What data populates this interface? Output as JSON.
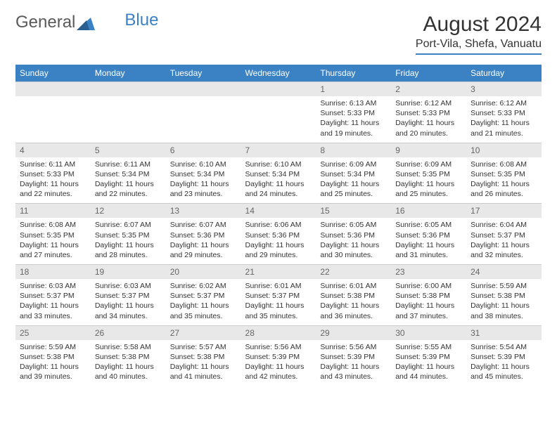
{
  "brand": {
    "part1": "General",
    "part2": "Blue"
  },
  "title": "August 2024",
  "location": "Port-Vila, Shefa, Vanuatu",
  "colors": {
    "header_bg": "#3b82c4",
    "header_text": "#ffffff",
    "daynum_bg": "#e8e8e8",
    "daynum_text": "#666666",
    "body_text": "#333333",
    "border": "#cccccc"
  },
  "day_headers": [
    "Sunday",
    "Monday",
    "Tuesday",
    "Wednesday",
    "Thursday",
    "Friday",
    "Saturday"
  ],
  "weeks": [
    {
      "nums": [
        "",
        "",
        "",
        "",
        "1",
        "2",
        "3"
      ],
      "cells": [
        null,
        null,
        null,
        null,
        {
          "sunrise": "Sunrise: 6:13 AM",
          "sunset": "Sunset: 5:33 PM",
          "day1": "Daylight: 11 hours",
          "day2": "and 19 minutes."
        },
        {
          "sunrise": "Sunrise: 6:12 AM",
          "sunset": "Sunset: 5:33 PM",
          "day1": "Daylight: 11 hours",
          "day2": "and 20 minutes."
        },
        {
          "sunrise": "Sunrise: 6:12 AM",
          "sunset": "Sunset: 5:33 PM",
          "day1": "Daylight: 11 hours",
          "day2": "and 21 minutes."
        }
      ]
    },
    {
      "nums": [
        "4",
        "5",
        "6",
        "7",
        "8",
        "9",
        "10"
      ],
      "cells": [
        {
          "sunrise": "Sunrise: 6:11 AM",
          "sunset": "Sunset: 5:33 PM",
          "day1": "Daylight: 11 hours",
          "day2": "and 22 minutes."
        },
        {
          "sunrise": "Sunrise: 6:11 AM",
          "sunset": "Sunset: 5:34 PM",
          "day1": "Daylight: 11 hours",
          "day2": "and 22 minutes."
        },
        {
          "sunrise": "Sunrise: 6:10 AM",
          "sunset": "Sunset: 5:34 PM",
          "day1": "Daylight: 11 hours",
          "day2": "and 23 minutes."
        },
        {
          "sunrise": "Sunrise: 6:10 AM",
          "sunset": "Sunset: 5:34 PM",
          "day1": "Daylight: 11 hours",
          "day2": "and 24 minutes."
        },
        {
          "sunrise": "Sunrise: 6:09 AM",
          "sunset": "Sunset: 5:34 PM",
          "day1": "Daylight: 11 hours",
          "day2": "and 25 minutes."
        },
        {
          "sunrise": "Sunrise: 6:09 AM",
          "sunset": "Sunset: 5:35 PM",
          "day1": "Daylight: 11 hours",
          "day2": "and 25 minutes."
        },
        {
          "sunrise": "Sunrise: 6:08 AM",
          "sunset": "Sunset: 5:35 PM",
          "day1": "Daylight: 11 hours",
          "day2": "and 26 minutes."
        }
      ]
    },
    {
      "nums": [
        "11",
        "12",
        "13",
        "14",
        "15",
        "16",
        "17"
      ],
      "cells": [
        {
          "sunrise": "Sunrise: 6:08 AM",
          "sunset": "Sunset: 5:35 PM",
          "day1": "Daylight: 11 hours",
          "day2": "and 27 minutes."
        },
        {
          "sunrise": "Sunrise: 6:07 AM",
          "sunset": "Sunset: 5:35 PM",
          "day1": "Daylight: 11 hours",
          "day2": "and 28 minutes."
        },
        {
          "sunrise": "Sunrise: 6:07 AM",
          "sunset": "Sunset: 5:36 PM",
          "day1": "Daylight: 11 hours",
          "day2": "and 29 minutes."
        },
        {
          "sunrise": "Sunrise: 6:06 AM",
          "sunset": "Sunset: 5:36 PM",
          "day1": "Daylight: 11 hours",
          "day2": "and 29 minutes."
        },
        {
          "sunrise": "Sunrise: 6:05 AM",
          "sunset": "Sunset: 5:36 PM",
          "day1": "Daylight: 11 hours",
          "day2": "and 30 minutes."
        },
        {
          "sunrise": "Sunrise: 6:05 AM",
          "sunset": "Sunset: 5:36 PM",
          "day1": "Daylight: 11 hours",
          "day2": "and 31 minutes."
        },
        {
          "sunrise": "Sunrise: 6:04 AM",
          "sunset": "Sunset: 5:37 PM",
          "day1": "Daylight: 11 hours",
          "day2": "and 32 minutes."
        }
      ]
    },
    {
      "nums": [
        "18",
        "19",
        "20",
        "21",
        "22",
        "23",
        "24"
      ],
      "cells": [
        {
          "sunrise": "Sunrise: 6:03 AM",
          "sunset": "Sunset: 5:37 PM",
          "day1": "Daylight: 11 hours",
          "day2": "and 33 minutes."
        },
        {
          "sunrise": "Sunrise: 6:03 AM",
          "sunset": "Sunset: 5:37 PM",
          "day1": "Daylight: 11 hours",
          "day2": "and 34 minutes."
        },
        {
          "sunrise": "Sunrise: 6:02 AM",
          "sunset": "Sunset: 5:37 PM",
          "day1": "Daylight: 11 hours",
          "day2": "and 35 minutes."
        },
        {
          "sunrise": "Sunrise: 6:01 AM",
          "sunset": "Sunset: 5:37 PM",
          "day1": "Daylight: 11 hours",
          "day2": "and 35 minutes."
        },
        {
          "sunrise": "Sunrise: 6:01 AM",
          "sunset": "Sunset: 5:38 PM",
          "day1": "Daylight: 11 hours",
          "day2": "and 36 minutes."
        },
        {
          "sunrise": "Sunrise: 6:00 AM",
          "sunset": "Sunset: 5:38 PM",
          "day1": "Daylight: 11 hours",
          "day2": "and 37 minutes."
        },
        {
          "sunrise": "Sunrise: 5:59 AM",
          "sunset": "Sunset: 5:38 PM",
          "day1": "Daylight: 11 hours",
          "day2": "and 38 minutes."
        }
      ]
    },
    {
      "nums": [
        "25",
        "26",
        "27",
        "28",
        "29",
        "30",
        "31"
      ],
      "cells": [
        {
          "sunrise": "Sunrise: 5:59 AM",
          "sunset": "Sunset: 5:38 PM",
          "day1": "Daylight: 11 hours",
          "day2": "and 39 minutes."
        },
        {
          "sunrise": "Sunrise: 5:58 AM",
          "sunset": "Sunset: 5:38 PM",
          "day1": "Daylight: 11 hours",
          "day2": "and 40 minutes."
        },
        {
          "sunrise": "Sunrise: 5:57 AM",
          "sunset": "Sunset: 5:38 PM",
          "day1": "Daylight: 11 hours",
          "day2": "and 41 minutes."
        },
        {
          "sunrise": "Sunrise: 5:56 AM",
          "sunset": "Sunset: 5:39 PM",
          "day1": "Daylight: 11 hours",
          "day2": "and 42 minutes."
        },
        {
          "sunrise": "Sunrise: 5:56 AM",
          "sunset": "Sunset: 5:39 PM",
          "day1": "Daylight: 11 hours",
          "day2": "and 43 minutes."
        },
        {
          "sunrise": "Sunrise: 5:55 AM",
          "sunset": "Sunset: 5:39 PM",
          "day1": "Daylight: 11 hours",
          "day2": "and 44 minutes."
        },
        {
          "sunrise": "Sunrise: 5:54 AM",
          "sunset": "Sunset: 5:39 PM",
          "day1": "Daylight: 11 hours",
          "day2": "and 45 minutes."
        }
      ]
    }
  ]
}
